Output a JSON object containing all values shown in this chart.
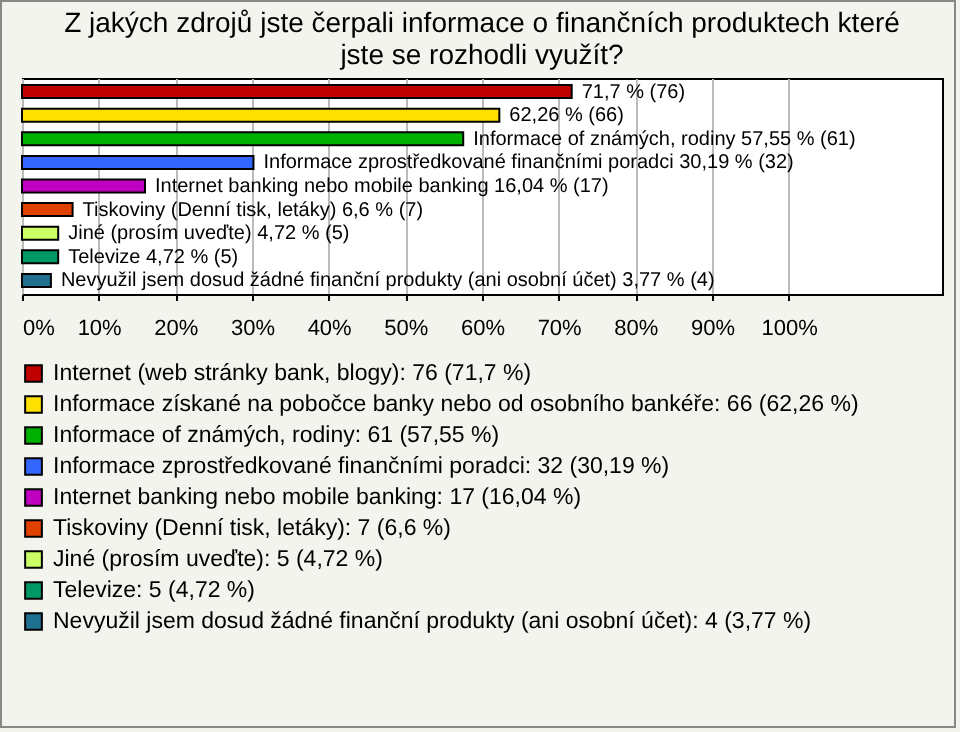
{
  "chart_data": {
    "type": "bar",
    "orientation": "horizontal",
    "title": "Z jakých zdrojů jste čerpali informace o finančních produktech které jste se rozhodli využít?",
    "categories": [
      null,
      null,
      null,
      null,
      null,
      null,
      null,
      null,
      null
    ],
    "series": [
      {
        "name": "Internet (web stránky bank, blogy): 76 (71,7 %)",
        "color": "#c00000",
        "values": [
          71.7,
          null,
          null,
          null,
          null,
          null,
          null,
          null,
          null
        ],
        "value_labels": [
          "71,7 % (76)",
          null,
          null,
          null,
          null,
          null,
          null,
          null,
          null
        ]
      },
      {
        "name": "Informace získané na pobočce banky nebo od osobního bankéře: 66 (62,26 %)",
        "color": "#ffe000",
        "values": [
          null,
          62.26,
          null,
          null,
          null,
          null,
          null,
          null,
          null
        ],
        "value_labels": [
          null,
          "62,26 % (66)",
          null,
          null,
          null,
          null,
          null,
          null,
          null
        ]
      },
      {
        "name": "Informace of známých, rodiny: 61 (57,55 %)",
        "color": "#00b000",
        "values": [
          null,
          null,
          57.55,
          null,
          null,
          null,
          null,
          null,
          null
        ],
        "value_labels": [
          null,
          null,
          "Informace of známých, rodiny 57,55 % (61)",
          null,
          null,
          null,
          null,
          null,
          null
        ]
      },
      {
        "name": "Informace zprostředkované finančními poradci: 32 (30,19 %)",
        "color": "#3366ff",
        "values": [
          null,
          null,
          null,
          30.19,
          null,
          null,
          null,
          null,
          null
        ],
        "value_labels": [
          null,
          null,
          null,
          "Informace zprostředkované finančními poradci 30,19 % (32)",
          null,
          null,
          null,
          null,
          null
        ]
      },
      {
        "name": "Internet banking nebo mobile banking: 17 (16,04 %)",
        "color": "#c000c0",
        "values": [
          null,
          null,
          null,
          null,
          16.04,
          null,
          null,
          null,
          null
        ],
        "value_labels": [
          null,
          null,
          null,
          null,
          "Internet banking nebo mobile banking 16,04 % (17)",
          null,
          null,
          null,
          null
        ]
      },
      {
        "name": "Tiskoviny (Denní tisk, letáky): 7 (6,6 %)",
        "color": "#e04000",
        "values": [
          null,
          null,
          null,
          null,
          null,
          6.6,
          null,
          null,
          null
        ],
        "value_labels": [
          null,
          null,
          null,
          null,
          null,
          "Tiskoviny (Denní tisk, letáky) 6,6 % (7)",
          null,
          null,
          null
        ]
      },
      {
        "name": "Jiné (prosím uveďte): 5 (4,72 %)",
        "color": "#ccff66",
        "values": [
          null,
          null,
          null,
          null,
          null,
          null,
          4.72,
          null,
          null
        ],
        "value_labels": [
          null,
          null,
          null,
          null,
          null,
          null,
          "Jiné (prosím uveďte) 4,72 % (5)",
          null,
          null
        ]
      },
      {
        "name": "Televize: 5 (4,72 %)",
        "color": "#009966",
        "values": [
          null,
          null,
          null,
          null,
          null,
          null,
          null,
          4.72,
          null
        ],
        "value_labels": [
          null,
          null,
          null,
          null,
          null,
          null,
          null,
          "Televize 4,72 % (5)",
          null
        ]
      },
      {
        "name": "Nevyužil jsem dosud žádné finanční produkty (ani osobní účet): 4 (3,77 %)",
        "color": "#207090",
        "values": [
          null,
          null,
          null,
          null,
          null,
          null,
          null,
          null,
          3.77
        ],
        "value_labels": [
          null,
          null,
          null,
          null,
          null,
          null,
          null,
          null,
          "Nevyužil jsem dosud žádné finanční produkty (ani osobní účet) 3,77 % (4)"
        ]
      }
    ],
    "xlim": [
      0,
      120
    ],
    "xticks": [
      {
        "value": 0,
        "label": "0%"
      },
      {
        "value": 10,
        "label": "10%"
      },
      {
        "value": 20,
        "label": "20%"
      },
      {
        "value": 30,
        "label": "30%"
      },
      {
        "value": 40,
        "label": "40%"
      },
      {
        "value": 50,
        "label": "50%"
      },
      {
        "value": 60,
        "label": "60%"
      },
      {
        "value": 70,
        "label": "70%"
      },
      {
        "value": 80,
        "label": "80%"
      },
      {
        "value": 90,
        "label": "90%"
      },
      {
        "value": 100,
        "label": "100%"
      }
    ],
    "grid": "x",
    "legend": "bottom",
    "tick_labels": "x"
  }
}
